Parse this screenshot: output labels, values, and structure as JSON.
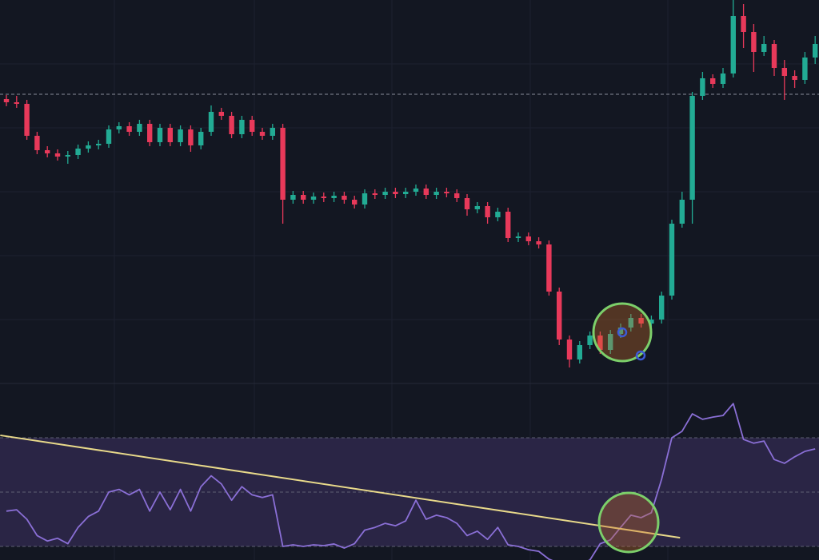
{
  "chart_data": [
    {
      "type": "candlestick",
      "up_color": "#22ab94",
      "down_color": "#e8395a",
      "ylim": [
        0,
        480
      ],
      "reference_line": 362,
      "open": [
        356,
        352,
        350,
        310,
        292,
        288,
        284,
        286,
        294,
        298,
        300,
        318,
        322,
        315,
        325,
        302,
        320,
        302,
        318,
        298,
        315,
        340,
        335,
        312,
        330,
        315,
        310,
        320,
        230,
        236,
        230,
        234,
        232,
        235,
        230,
        224,
        238,
        236,
        240,
        237,
        240,
        244,
        236,
        240,
        238,
        232,
        218,
        222,
        208,
        215,
        182,
        184,
        178,
        174,
        115,
        55,
        30,
        48,
        60,
        42,
        62,
        70,
        82,
        75,
        80,
        110,
        200,
        230,
        360,
        382,
        375,
        388,
        460,
        440,
        415,
        425,
        395,
        385,
        380,
        408
      ],
      "high": [
        361,
        360,
        355,
        315,
        297,
        293,
        291,
        299,
        303,
        305,
        323,
        327,
        327,
        330,
        330,
        325,
        325,
        323,
        323,
        320,
        348,
        345,
        340,
        335,
        335,
        320,
        325,
        325,
        241,
        241,
        239,
        239,
        240,
        240,
        235,
        243,
        243,
        245,
        245,
        245,
        249,
        249,
        245,
        245,
        243,
        237,
        227,
        227,
        220,
        220,
        189,
        189,
        183,
        179,
        120,
        60,
        53,
        65,
        65,
        67,
        75,
        87,
        87,
        85,
        115,
        205,
        240,
        365,
        390,
        387,
        395,
        482,
        475,
        450,
        435,
        430,
        405,
        392,
        415,
        435
      ],
      "low": [
        347,
        345,
        305,
        287,
        283,
        279,
        275,
        281,
        289,
        293,
        295,
        313,
        310,
        310,
        297,
        297,
        297,
        297,
        290,
        293,
        310,
        330,
        307,
        307,
        310,
        305,
        305,
        200,
        225,
        225,
        225,
        227,
        227,
        225,
        219,
        219,
        231,
        231,
        232,
        232,
        235,
        231,
        231,
        233,
        227,
        210,
        213,
        200,
        203,
        177,
        177,
        173,
        169,
        110,
        48,
        20,
        25,
        43,
        37,
        37,
        57,
        65,
        70,
        70,
        75,
        105,
        195,
        200,
        355,
        370,
        370,
        383,
        420,
        390,
        410,
        385,
        355,
        370,
        375,
        400
      ],
      "close": [
        352,
        350,
        310,
        292,
        288,
        284,
        286,
        294,
        298,
        300,
        318,
        322,
        315,
        325,
        302,
        320,
        302,
        318,
        298,
        315,
        340,
        335,
        312,
        330,
        315,
        310,
        320,
        230,
        236,
        230,
        234,
        232,
        235,
        230,
        224,
        238,
        236,
        240,
        237,
        240,
        244,
        236,
        240,
        238,
        232,
        218,
        222,
        208,
        215,
        182,
        184,
        178,
        174,
        115,
        55,
        30,
        48,
        60,
        42,
        62,
        70,
        82,
        75,
        80,
        110,
        200,
        230,
        360,
        382,
        375,
        388,
        460,
        440,
        415,
        425,
        395,
        385,
        380,
        408,
        425
      ]
    },
    {
      "type": "line",
      "ylim": [
        25,
        90
      ],
      "levels": [
        70,
        50,
        30
      ],
      "band_color": "#2a2545",
      "series": [
        {
          "color": "#8a6fd6",
          "values": [
            43,
            43.5,
            40,
            34,
            32,
            33,
            31,
            37,
            41,
            43,
            50,
            51,
            49,
            51,
            43,
            50,
            43.5,
            51,
            43,
            52,
            56,
            53,
            47,
            52,
            49,
            48,
            49,
            30,
            30.6,
            30,
            30.6,
            30.3,
            30.9,
            29.4,
            31,
            36,
            37,
            38.5,
            37.6,
            39.4,
            47,
            40,
            41.5,
            40.6,
            38.5,
            34,
            35.6,
            32.6,
            37,
            30.6,
            30,
            28.8,
            28.2,
            25.3,
            23.8,
            22.4,
            23.5,
            25,
            31,
            32.4,
            37,
            41.5,
            40.6,
            42.4,
            54.7,
            70,
            72.4,
            78.8,
            76.8,
            77.6,
            78.2,
            82.6,
            69.4,
            68,
            68.8,
            62,
            60.6,
            63,
            65,
            65.9
          ]
        }
      ],
      "trendline": {
        "color": "#e8d98a",
        "x": [
          -0.6,
          65.8
        ],
        "values": [
          70.9,
          33.2
        ]
      }
    }
  ]
}
